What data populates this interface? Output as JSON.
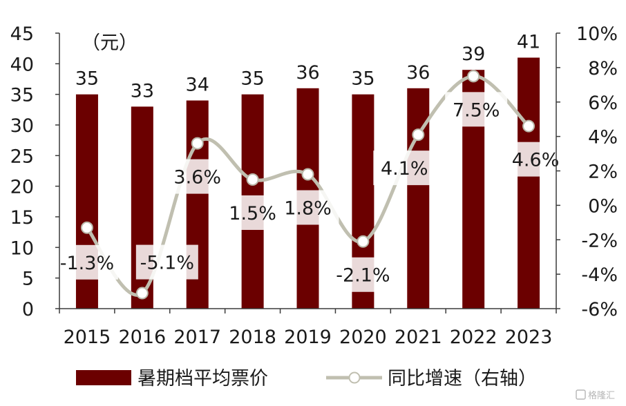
{
  "chart_data": {
    "type": "bar+line",
    "categories": [
      "2015",
      "2016",
      "2017",
      "2018",
      "2019",
      "2020",
      "2021",
      "2022",
      "2023"
    ],
    "bar_series": {
      "name": "暑期档平均票价",
      "values": [
        35,
        33,
        34,
        35,
        36,
        35,
        36,
        39,
        41
      ],
      "labels": [
        "35",
        "33",
        "34",
        "35",
        "36",
        "35",
        "36",
        "39",
        "41"
      ],
      "color": "#6b0000"
    },
    "line_series": {
      "name": "同比增速（右轴）",
      "values": [
        -1.3,
        -5.1,
        3.6,
        1.5,
        1.8,
        -2.1,
        4.1,
        7.5,
        4.6
      ],
      "labels": [
        "-1.3%",
        "-5.1%",
        "3.6%",
        "1.5%",
        "1.8%",
        "-2.1%",
        "4.1%",
        "7.5%",
        "4.6%"
      ],
      "color": "#c0bfb0"
    },
    "left_axis": {
      "unit": "（元）",
      "range": [
        0,
        45
      ],
      "ticks": [
        "0",
        "5",
        "10",
        "15",
        "20",
        "25",
        "30",
        "35",
        "40",
        "45"
      ]
    },
    "right_axis": {
      "range": [
        -6,
        10
      ],
      "ticks": [
        "-6%",
        "-4%",
        "-2%",
        "0%",
        "2%",
        "4%",
        "6%",
        "8%",
        "10%"
      ]
    },
    "grid": false,
    "legend_position": "bottom"
  },
  "watermark": "格隆汇"
}
